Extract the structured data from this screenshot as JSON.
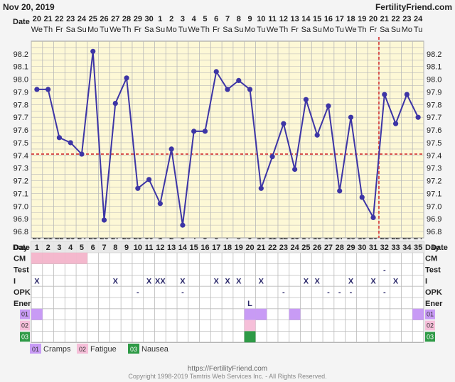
{
  "header": {
    "date": "Nov 20, 2019",
    "site": "FertilityFriend.com"
  },
  "colors": {
    "plot_bg": "#fdf8d6",
    "grid": "#b9b9b9",
    "line": "#3d35a6",
    "coverline": "#d9534f",
    "cm_pink": "#f4b8cd",
    "cramps": "#c89bf5",
    "fatigue": "#f6bfd9",
    "nausea": "#2e9a46"
  },
  "chart_data": {
    "type": "line",
    "title": "",
    "xlabel": "",
    "ylabel": "",
    "date_label": "Date",
    "dates": [
      "20",
      "21",
      "22",
      "23",
      "24",
      "25",
      "26",
      "27",
      "28",
      "29",
      "30",
      "1",
      "2",
      "3",
      "4",
      "5",
      "6",
      "7",
      "8",
      "9",
      "10",
      "11",
      "12",
      "13",
      "14",
      "15",
      "16",
      "17",
      "18",
      "19",
      "20",
      "21",
      "22",
      "23",
      "24"
    ],
    "weekdays": [
      "We",
      "Th",
      "Fr",
      "Sa",
      "Su",
      "Mo",
      "Tu",
      "We",
      "Th",
      "Fr",
      "Sa",
      "Su",
      "Mo",
      "Tu",
      "We",
      "Th",
      "Fr",
      "Sa",
      "Su",
      "Mo",
      "Tu",
      "We",
      "Th",
      "Fr",
      "Sa",
      "Su",
      "Mo",
      "Tu",
      "We",
      "Th",
      "Fr",
      "Sa",
      "Su",
      "Mo",
      "Tu"
    ],
    "y_ticks": [
      "98.2",
      "98.1",
      "98.0",
      "97.9",
      "97.8",
      "97.7",
      "97.6",
      "97.5",
      "97.4",
      "97.3",
      "97.2",
      "97.1",
      "97.0",
      "96.9",
      "96.8"
    ],
    "ylim": [
      96.8,
      98.2
    ],
    "temps": [
      97.92,
      97.92,
      97.54,
      97.5,
      97.41,
      98.22,
      96.89,
      97.81,
      98.01,
      97.14,
      97.21,
      97.02,
      97.45,
      96.85,
      97.59,
      97.59,
      98.06,
      97.92,
      97.99,
      97.92,
      97.14,
      97.39,
      97.65,
      97.29,
      97.84,
      97.56,
      97.79,
      97.12,
      97.7,
      97.07,
      96.91,
      97.88,
      97.65,
      97.88,
      97.7
    ],
    "coverline": 97.41,
    "ovulation_day": 31,
    "grid": true
  },
  "rows": {
    "day_label": "Day",
    "cm_label": "CM",
    "test_label": "Test",
    "i_label": "I",
    "opk_label": "OPK",
    "ener_label": "Ener",
    "days": [
      "1",
      "2",
      "3",
      "4",
      "5",
      "6",
      "7",
      "8",
      "9",
      "10",
      "11",
      "12",
      "13",
      "14",
      "15",
      "16",
      "17",
      "18",
      "19",
      "20",
      "21",
      "22",
      "23",
      "24",
      "25",
      "26",
      "27",
      "28",
      "29",
      "30",
      "31",
      "32",
      "33",
      "34",
      "35"
    ],
    "cm_days": [
      1,
      2,
      3,
      4,
      5
    ],
    "test_marks": [
      {
        "day": 32,
        "mark": "-"
      }
    ],
    "i_marks": [
      {
        "day": 1,
        "mark": "X"
      },
      {
        "day": 8,
        "mark": "X"
      },
      {
        "day": 11,
        "mark": "X"
      },
      {
        "day": 12,
        "mark": "XX"
      },
      {
        "day": 14,
        "mark": "X"
      },
      {
        "day": 17,
        "mark": "X"
      },
      {
        "day": 18,
        "mark": "X"
      },
      {
        "day": 19,
        "mark": "X"
      },
      {
        "day": 21,
        "mark": "X"
      },
      {
        "day": 25,
        "mark": "X"
      },
      {
        "day": 26,
        "mark": "X"
      },
      {
        "day": 29,
        "mark": "X"
      },
      {
        "day": 31,
        "mark": "X"
      },
      {
        "day": 33,
        "mark": "X"
      }
    ],
    "opk_marks": [
      {
        "day": 10,
        "mark": "-"
      },
      {
        "day": 14,
        "mark": "-"
      },
      {
        "day": 23,
        "mark": "-"
      },
      {
        "day": 27,
        "mark": "-"
      },
      {
        "day": 28,
        "mark": "-"
      },
      {
        "day": 29,
        "mark": "-"
      },
      {
        "day": 32,
        "mark": "-"
      }
    ],
    "ener_marks": [
      {
        "day": 20,
        "mark": "L"
      }
    ],
    "symptoms": [
      {
        "code": "01",
        "color_key": "cramps",
        "days": [
          1,
          20,
          21,
          24,
          35
        ]
      },
      {
        "code": "02",
        "color_key": "fatigue",
        "days": [
          20
        ]
      },
      {
        "code": "03",
        "color_key": "nausea",
        "days": [
          20
        ]
      }
    ]
  },
  "legend": [
    {
      "code": "01",
      "label": "Cramps",
      "color_key": "cramps"
    },
    {
      "code": "02",
      "label": "Fatigue",
      "color_key": "fatigue"
    },
    {
      "code": "03",
      "label": "Nausea",
      "color_key": "nausea"
    }
  ],
  "footer": {
    "url": "https://FertilityFriend.com",
    "copyright": "Copyright 1998-2019 Tamtris Web Services Inc. - All Rights Reserved."
  }
}
